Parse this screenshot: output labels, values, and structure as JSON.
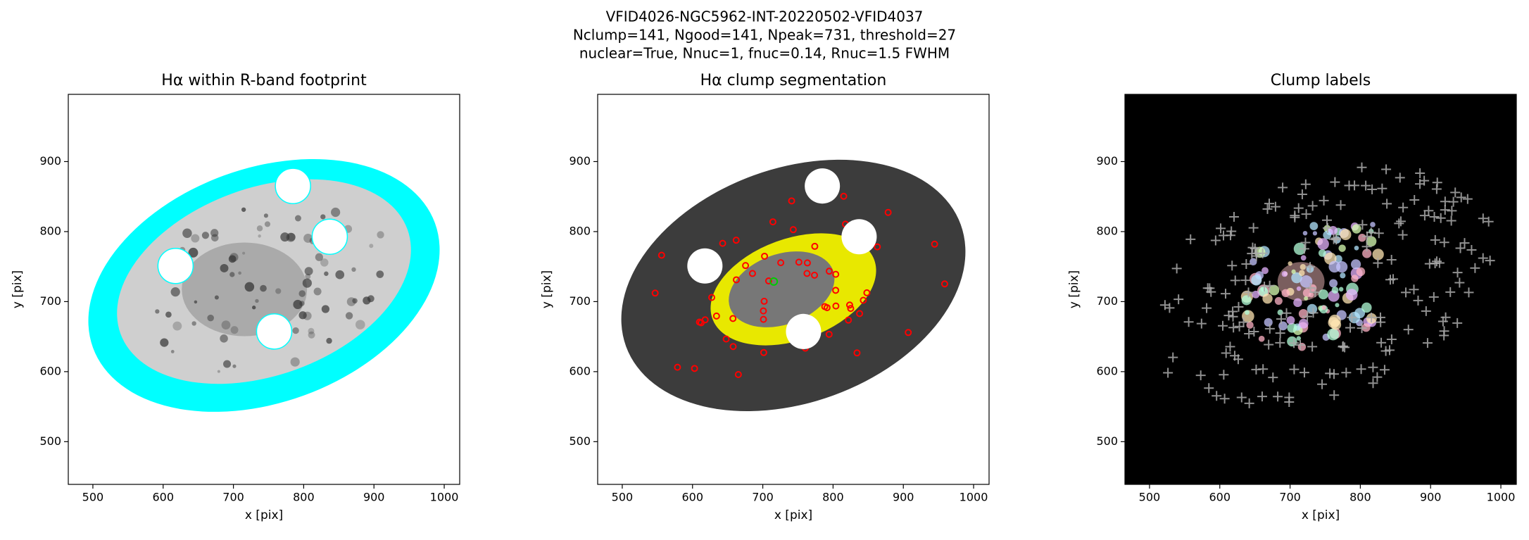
{
  "suptitle": [
    "VFID4026-NGC5962-INT-20220502-VFID4037",
    "Nclump=141, Ngood=141, Npeak=731, threshold=27",
    "nuclear=True, Nnuc=1, fnuc=0.14, Rnuc=1.5 FWHM"
  ],
  "chart_data": [
    {
      "type": "image",
      "title": "Hα within R-band footprint",
      "xlabel": "x [pix]",
      "ylabel": "y [pix]",
      "style": "footprint",
      "xlim": [
        465,
        1022
      ],
      "ylim": [
        439,
        996
      ],
      "xticks": [
        500,
        600,
        700,
        800,
        900,
        1000
      ],
      "yticks": [
        500,
        600,
        700,
        800,
        900
      ]
    },
    {
      "type": "image",
      "title": "Hα clump segmentation",
      "xlabel": "x [pix]",
      "ylabel": "y [pix]",
      "style": "segmentation",
      "xlim": [
        465,
        1022
      ],
      "ylim": [
        439,
        996
      ],
      "xticks": [
        500,
        600,
        700,
        800,
        900,
        1000
      ],
      "yticks": [
        500,
        600,
        700,
        800,
        900
      ]
    },
    {
      "type": "image",
      "title": "Clump labels",
      "xlabel": "x [pix]",
      "ylabel": "y [pix]",
      "style": "labels",
      "xlim": [
        465,
        1022
      ],
      "ylim": [
        439,
        996
      ],
      "xticks": [
        500,
        600,
        700,
        800,
        900,
        1000
      ],
      "yticks": [
        500,
        600,
        700,
        800,
        900
      ]
    }
  ]
}
